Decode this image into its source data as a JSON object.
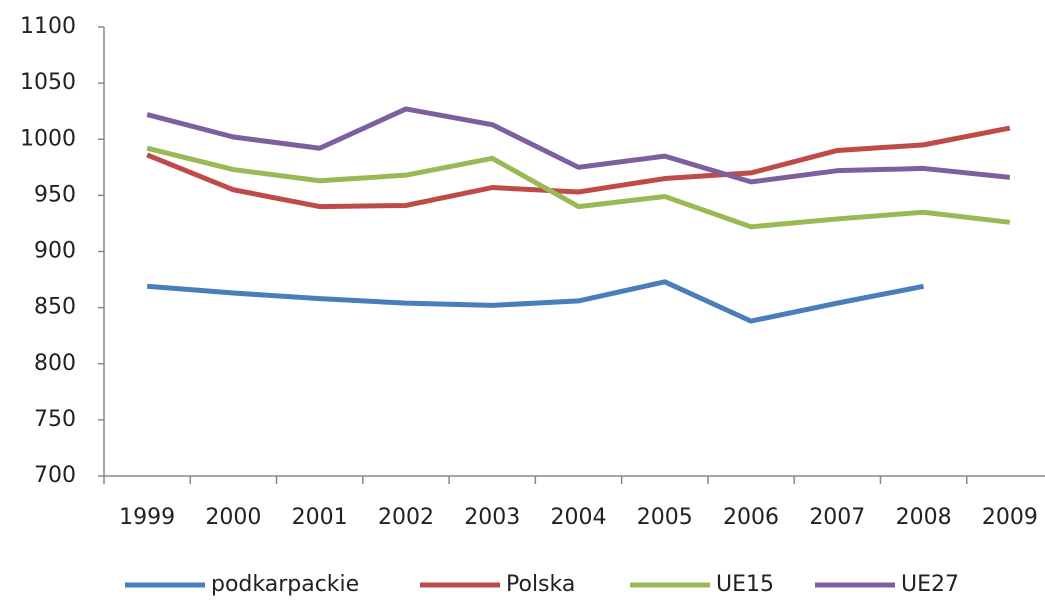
{
  "chart_data": {
    "type": "line",
    "categories": [
      "1999",
      "2000",
      "2001",
      "2002",
      "2003",
      "2004",
      "2005",
      "2006",
      "2007",
      "2008",
      "2009"
    ],
    "series": [
      {
        "name": "podkarpackie",
        "color": "#4a7ebb",
        "values": [
          869,
          863,
          858,
          854,
          852,
          856,
          873,
          838,
          854,
          869,
          null
        ]
      },
      {
        "name": "Polska",
        "color": "#be4b48",
        "values": [
          986,
          955,
          940,
          941,
          957,
          953,
          965,
          970,
          990,
          995,
          1010
        ]
      },
      {
        "name": "UE15",
        "color": "#98b954",
        "values": [
          992,
          973,
          963,
          968,
          983,
          940,
          949,
          922,
          929,
          935,
          926
        ]
      },
      {
        "name": "UE27",
        "color": "#7d5fa0",
        "values": [
          1022,
          1002,
          992,
          1027,
          1013,
          975,
          985,
          962,
          972,
          974,
          966
        ]
      }
    ],
    "ylim": [
      700,
      1100
    ],
    "yticks": [
      700,
      750,
      800,
      850,
      900,
      950,
      1000,
      1050,
      1100
    ],
    "grid": false,
    "legend": "bottom"
  }
}
